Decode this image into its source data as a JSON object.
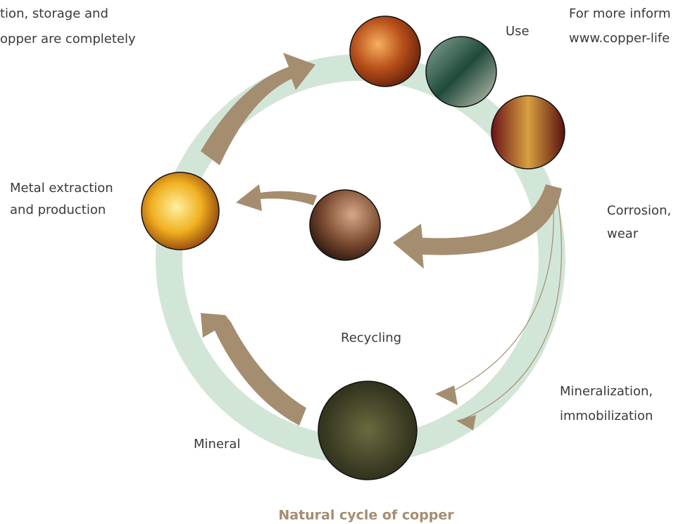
{
  "intro_left": {
    "lines": [
      "tion, storage and",
      "opper are completely"
    ]
  },
  "intro_right": {
    "lines": [
      "For more inform",
      "www.copper-life"
    ]
  },
  "nodes": [
    {
      "label": [
        "Use"
      ]
    },
    {
      "label": [
        "Metal extraction",
        "and production"
      ]
    },
    {
      "label": [
        "Corrosion,",
        "wear"
      ]
    },
    {
      "label": [
        "Recycling"
      ]
    },
    {
      "label": [
        "Mineralization,",
        "immobilization"
      ]
    },
    {
      "label": [
        "Mineral"
      ]
    }
  ],
  "caption": "Natural cycle of copper"
}
